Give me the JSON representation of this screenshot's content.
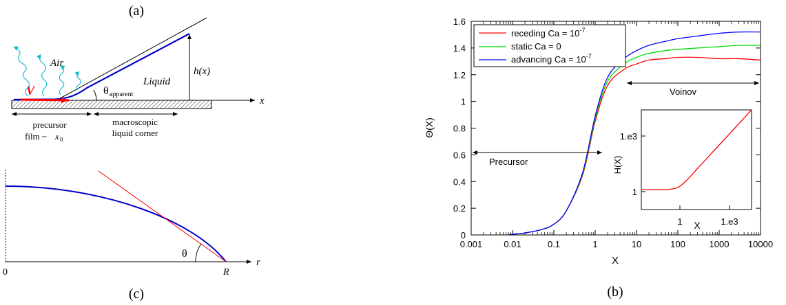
{
  "panel_a": {
    "label": "(a)",
    "air": "Air",
    "liquid": "Liquid",
    "velocity": "V",
    "height_label": "h(x)",
    "theta_symbol": "θ",
    "theta_subscript": "apparent",
    "x_axis": "x",
    "precursor_line1": "precursor",
    "precursor_line2": "film ~",
    "precursor_var": "x",
    "precursor_sub": "0",
    "corner_line1": "macroscopic",
    "corner_line2": "liquid corner",
    "colors": {
      "interface": "#0000cc",
      "velocity": "#ff0000",
      "waves": "#00b8c8",
      "tangent": "#000000"
    }
  },
  "panel_c": {
    "label": "(c)",
    "origin": "0",
    "r_axis": "r",
    "radius": "R",
    "theta": "θ",
    "colors": {
      "drop": "#0000cc",
      "tangent": "#ff0000"
    }
  },
  "panel_b": {
    "label": "(b)",
    "precursor_annotation": "Precursor",
    "voinov_annotation": "Voinov",
    "legend": [
      {
        "text": "receding Ca = 10",
        "exp": "-7",
        "color": "#ff0000"
      },
      {
        "text": "static Ca = 0",
        "exp": "",
        "color": "#00dd00"
      },
      {
        "text": "advancing Ca = 10",
        "exp": "-7",
        "color": "#0000ff"
      }
    ],
    "inset": {
      "xlabel": "X",
      "ylabel": "H(X)",
      "xticks": [
        "1",
        "1.e3"
      ],
      "yticks": [
        "1",
        "1.e3"
      ]
    }
  },
  "chart_data": {
    "type": "line",
    "xlabel": "X",
    "ylabel": "Θ(X)",
    "xscale": "log",
    "xlim": [
      0.001,
      10000
    ],
    "ylim": [
      0,
      1.6
    ],
    "xticks": [
      "0.001",
      "0.01",
      "0.1",
      "1",
      "10",
      "100",
      "1000",
      "10000"
    ],
    "yticks": [
      "0",
      "0.2",
      "0.4",
      "0.6",
      "0.8",
      "1",
      "1.2",
      "1.4",
      "1.6"
    ],
    "x": [
      0.008,
      0.01,
      0.02,
      0.05,
      0.1,
      0.2,
      0.5,
      1,
      2,
      5,
      10,
      20,
      50,
      100,
      300,
      1000,
      3000,
      10000
    ],
    "series": [
      {
        "name": "receding Ca = 10^-7",
        "color": "#ff0000",
        "values": [
          0,
          0.005,
          0.015,
          0.04,
          0.08,
          0.18,
          0.45,
          0.85,
          1.12,
          1.24,
          1.28,
          1.31,
          1.32,
          1.33,
          1.33,
          1.32,
          1.32,
          1.31
        ]
      },
      {
        "name": "static Ca = 0",
        "color": "#00dd00",
        "values": [
          0,
          0.005,
          0.015,
          0.04,
          0.08,
          0.18,
          0.46,
          0.87,
          1.15,
          1.28,
          1.33,
          1.36,
          1.38,
          1.39,
          1.4,
          1.41,
          1.42,
          1.42
        ]
      },
      {
        "name": "advancing Ca = 10^-7",
        "color": "#0000ff",
        "values": [
          0,
          0.005,
          0.015,
          0.04,
          0.08,
          0.18,
          0.47,
          0.89,
          1.18,
          1.32,
          1.38,
          1.42,
          1.45,
          1.47,
          1.49,
          1.51,
          1.52,
          1.52
        ]
      }
    ],
    "inset": {
      "type": "line",
      "xlabel": "X",
      "ylabel": "H(X)",
      "xscale": "log",
      "yscale": "log",
      "xlim": [
        0.01,
        10000
      ],
      "ylim": [
        0.1,
        10000
      ],
      "x": [
        0.01,
        0.03,
        0.1,
        0.3,
        1,
        3,
        10,
        100,
        1000,
        10000
      ],
      "values": [
        1,
        1,
        1,
        1.02,
        1.3,
        3,
        10,
        100,
        1000,
        10000
      ],
      "color": "#ff0000"
    }
  }
}
